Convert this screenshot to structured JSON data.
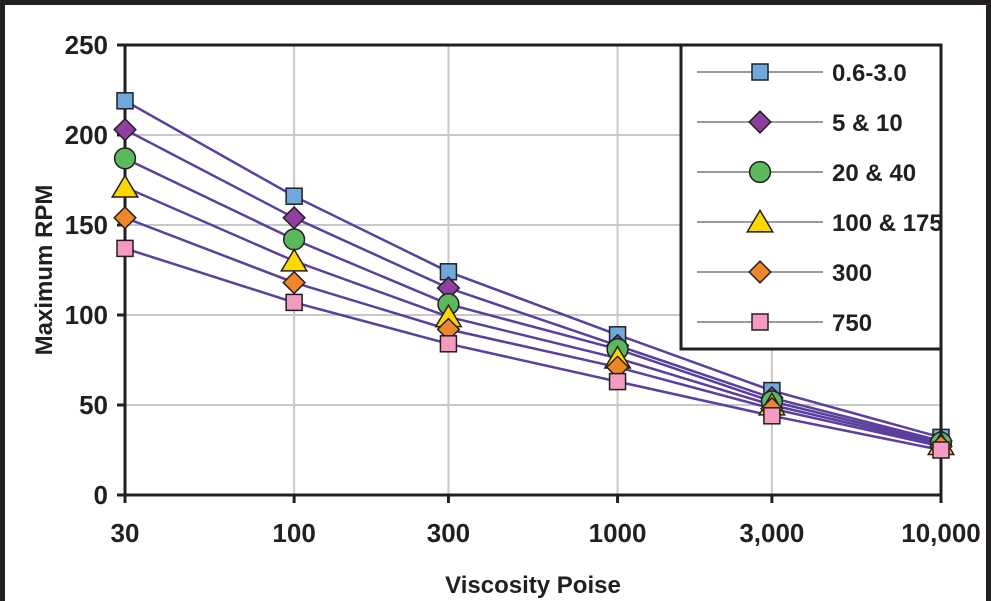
{
  "chart_data": {
    "type": "line",
    "xscale": "log",
    "xlabel": "Viscosity Poise",
    "ylabel": "Maximum RPM",
    "x_tick_values": [
      30,
      100,
      300,
      1000,
      3000,
      10000
    ],
    "x_tick_labels": [
      "30",
      "100",
      "300",
      "1000",
      "3,000",
      "10,000"
    ],
    "y_tick_values": [
      0,
      50,
      100,
      150,
      200,
      250
    ],
    "y_tick_labels": [
      "0",
      "50",
      "100",
      "150",
      "200",
      "250"
    ],
    "xlim": [
      30,
      10000
    ],
    "ylim": [
      0,
      250
    ],
    "grid": true,
    "legend_position": "top-right",
    "line_color": "#5b3fa0",
    "x": [
      30,
      100,
      300,
      1000,
      3000,
      10000
    ],
    "series": [
      {
        "name": "0.6-3.0",
        "marker": "square",
        "color": "#6fa8dc",
        "values": [
          219,
          166,
          124,
          89,
          58,
          32
        ]
      },
      {
        "name": "5 & 10",
        "marker": "diamond",
        "color": "#8e3fa0",
        "values": [
          203,
          154,
          115,
          83,
          54,
          30
        ]
      },
      {
        "name": "20 & 40",
        "marker": "circle",
        "color": "#5cb85c",
        "values": [
          187,
          142,
          106,
          81,
          52,
          29
        ]
      },
      {
        "name": "100 & 175",
        "marker": "triangle",
        "color": "#ffd700",
        "values": [
          171,
          130,
          99,
          76,
          50,
          28
        ]
      },
      {
        "name": "300",
        "marker": "diamond",
        "color": "#f0862a",
        "values": [
          154,
          118,
          92,
          71,
          48,
          27
        ]
      },
      {
        "name": "750",
        "marker": "square",
        "color": "#f59ac0",
        "values": [
          137,
          107,
          84,
          63,
          44,
          25
        ]
      }
    ]
  }
}
